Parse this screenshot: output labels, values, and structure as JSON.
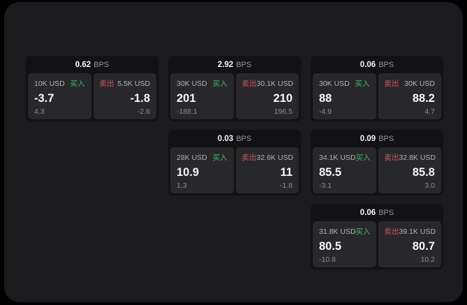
{
  "page": {
    "backdrop_color": "#000000",
    "surface_color": "#1b1b1d",
    "card_bg_color": "#121214",
    "panel_bg_color": "#28282b",
    "buy_color": "#3fb871",
    "sell_color": "#d25463"
  },
  "labels": {
    "bps": "BPS",
    "buy": "买入",
    "sell": "卖出"
  },
  "cards": [
    {
      "bps": "0.62",
      "buy": {
        "amount": "10K USD",
        "value": "-3.7",
        "sub": "4.3"
      },
      "sell": {
        "amount": "5.5K USD",
        "value": "-1.8",
        "sub": "-2.6"
      }
    },
    {
      "bps": "2.92",
      "buy": {
        "amount": "30K USD",
        "value": "201",
        "sub": "-188.1"
      },
      "sell": {
        "amount": "30.1K USD",
        "value": "210",
        "sub": "196.5"
      }
    },
    {
      "bps": "0.06",
      "buy": {
        "amount": "30K USD",
        "value": "88",
        "sub": "-4.9"
      },
      "sell": {
        "amount": "30K USD",
        "value": "88.2",
        "sub": "4.7"
      }
    },
    {
      "bps": "0.03",
      "buy": {
        "amount": "28K USD",
        "value": "10.9",
        "sub": "1.3"
      },
      "sell": {
        "amount": "32.6K USD",
        "value": "11",
        "sub": "-1.8"
      }
    },
    {
      "bps": "0.09",
      "buy": {
        "amount": "34.1K USD",
        "value": "85.5",
        "sub": "-3.1"
      },
      "sell": {
        "amount": "32.8K USD",
        "value": "85.8",
        "sub": "3.0"
      }
    },
    {
      "bps": "0.06",
      "buy": {
        "amount": "31.8K USD",
        "value": "80.5",
        "sub": "-10.8"
      },
      "sell": {
        "amount": "39.1K USD",
        "value": "80.7",
        "sub": "10.2"
      }
    }
  ]
}
